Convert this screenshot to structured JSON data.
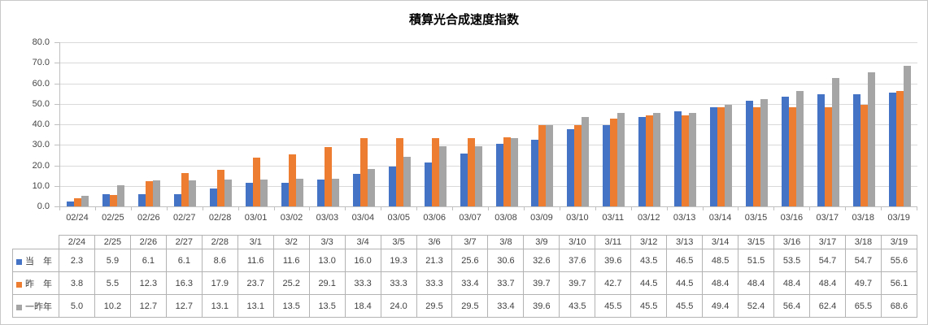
{
  "chart_data": {
    "type": "bar",
    "title": "積算光合成速度指数",
    "categories": [
      "02/24",
      "02/25",
      "02/26",
      "02/27",
      "02/28",
      "03/01",
      "03/02",
      "03/03",
      "03/04",
      "03/05",
      "03/06",
      "03/07",
      "03/08",
      "03/09",
      "03/10",
      "03/11",
      "03/12",
      "03/13",
      "03/14",
      "03/15",
      "03/16",
      "03/17",
      "03/18",
      "03/19"
    ],
    "series": [
      {
        "name": "当　年",
        "color": "#4472C4",
        "values": [
          2.3,
          5.9,
          6.1,
          6.1,
          8.6,
          11.6,
          11.6,
          13.0,
          16.0,
          19.3,
          21.3,
          25.6,
          30.6,
          32.6,
          37.6,
          39.6,
          43.5,
          46.5,
          48.5,
          51.5,
          53.5,
          54.7,
          54.7,
          55.6
        ]
      },
      {
        "name": "昨　年",
        "color": "#ED7D31",
        "values": [
          3.8,
          5.5,
          12.3,
          16.3,
          17.9,
          23.7,
          25.2,
          29.1,
          33.3,
          33.3,
          33.3,
          33.4,
          33.7,
          39.7,
          39.7,
          42.7,
          44.5,
          44.5,
          48.4,
          48.4,
          48.4,
          48.4,
          49.7,
          56.1
        ]
      },
      {
        "name": "一昨年",
        "color": "#A5A5A5",
        "values": [
          5.0,
          10.2,
          12.7,
          12.7,
          13.1,
          13.1,
          13.5,
          13.5,
          18.4,
          24.0,
          29.5,
          29.5,
          33.4,
          39.6,
          43.5,
          45.5,
          45.5,
          45.5,
          49.4,
          52.4,
          56.4,
          62.4,
          65.5,
          68.6
        ]
      }
    ],
    "ylim": [
      0,
      80
    ],
    "ytick_step": 10,
    "yticks": [
      "0.0",
      "10.0",
      "20.0",
      "30.0",
      "40.0",
      "50.0",
      "60.0",
      "70.0",
      "80.0"
    ],
    "grid": true,
    "legend_position": "table-rows-left",
    "axis_color": "#BFBFBF",
    "gridline_color": "#D9D9D9",
    "label_color": "#444444"
  },
  "table": {
    "column_headers": [
      "2/24",
      "2/25",
      "2/26",
      "2/27",
      "2/28",
      "3/1",
      "3/2",
      "3/3",
      "3/4",
      "3/5",
      "3/6",
      "3/7",
      "3/8",
      "3/9",
      "3/10",
      "3/11",
      "3/12",
      "3/13",
      "3/14",
      "3/15",
      "3/16",
      "3/17",
      "3/18",
      "3/19"
    ]
  }
}
